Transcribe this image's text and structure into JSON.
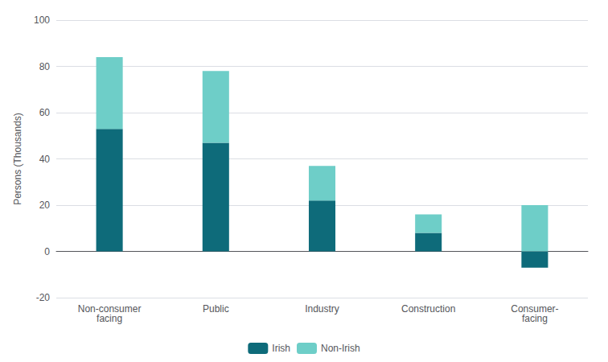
{
  "chart_data": {
    "type": "bar",
    "categories": [
      "Non-consumer\nfacing",
      "Public",
      "Industry",
      "Construction",
      "Consumer-\nfacing"
    ],
    "series": [
      {
        "name": "Irish",
        "color": "#0e6b7a",
        "values": [
          53,
          47,
          22,
          8,
          -7
        ]
      },
      {
        "name": "Non-Irish",
        "color": "#6ecec8",
        "values": [
          31,
          31,
          15,
          8,
          20
        ]
      }
    ],
    "ylabel": "Persons (Thousands)",
    "ylim": [
      -20,
      100
    ],
    "yticks": [
      -20,
      0,
      20,
      40,
      60,
      80,
      100
    ],
    "stacked": true,
    "grid": true,
    "legend": "bottom"
  }
}
